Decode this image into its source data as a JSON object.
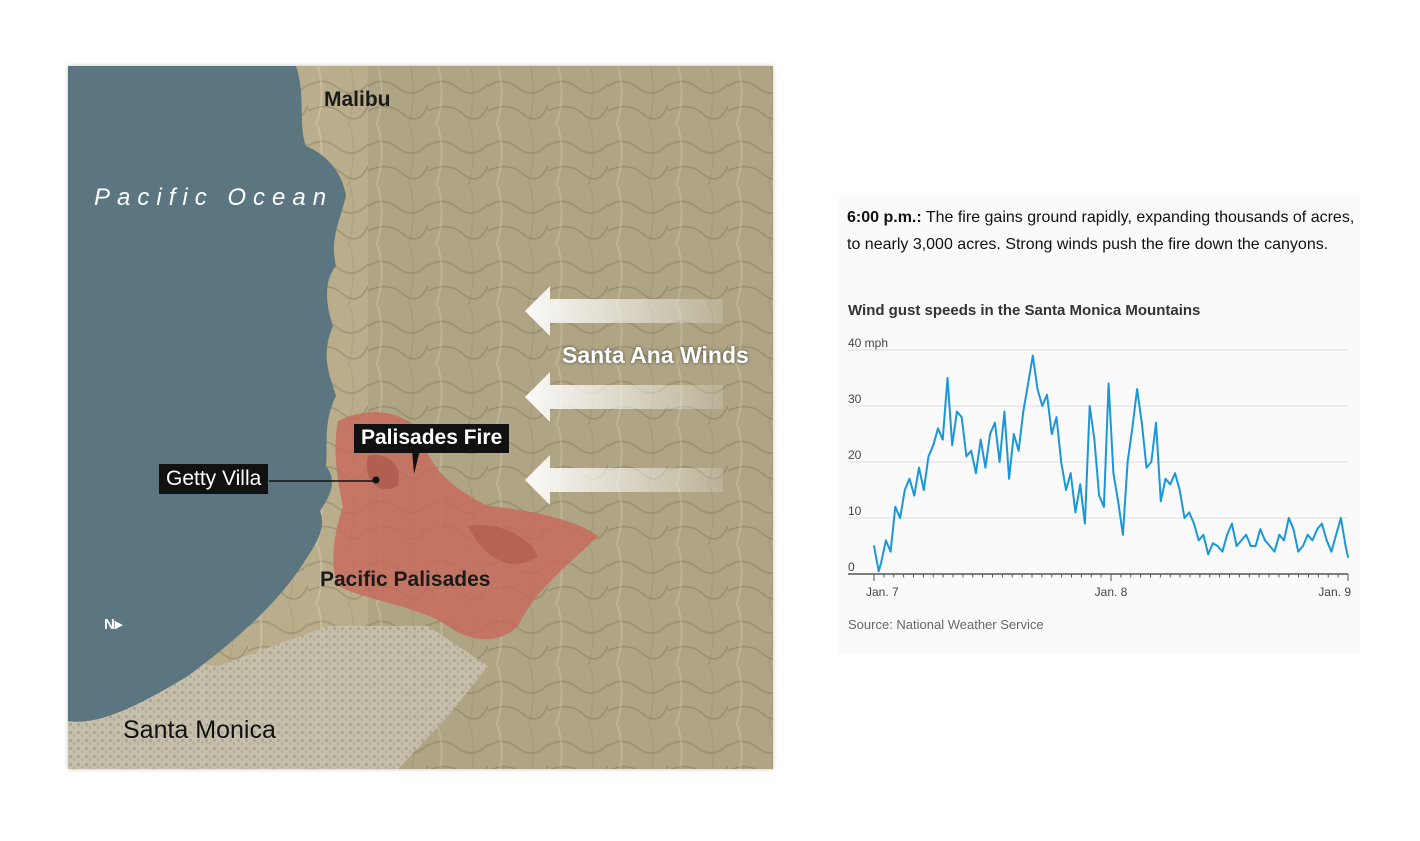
{
  "map": {
    "labels": {
      "malibu": "Malibu",
      "ocean": "Pacific Ocean",
      "winds": "Santa Ana Winds",
      "fire": "Palisades Fire",
      "getty": "Getty Villa",
      "palisades": "Pacific Palisades",
      "santa_monica": "Santa Monica"
    },
    "north_symbol": "N▸",
    "colors": {
      "ocean": "#5b7681",
      "land": "#b9ad8c",
      "fire": "#c8685a"
    }
  },
  "caption": {
    "time": "6:00 p.m.:",
    "text": " The fire gains ground rapidly, expanding thousands of acres, to nearly 3,000 acres. Strong winds push the fire down the canyons."
  },
  "chart_title": "Wind gust speeds in the Santa Monica Mountains",
  "source": "Source: National Weather Service",
  "chart_data": {
    "type": "line",
    "title": "Wind gust speeds in the Santa Monica Mountains",
    "xlabel": "",
    "ylabel": "",
    "ylim": [
      0,
      40
    ],
    "xlim": [
      0,
      2
    ],
    "yticks": [
      "0",
      "10",
      "20",
      "30",
      "40 mph"
    ],
    "xticks": [
      {
        "x": 0,
        "label": "Jan. 7"
      },
      {
        "x": 1,
        "label": "Jan. 8"
      },
      {
        "x": 2,
        "label": "Jan. 9"
      }
    ],
    "grid": true,
    "color": "#1a97d8",
    "series": [
      {
        "x": [
          0.0,
          0.02,
          0.03,
          0.05,
          0.07,
          0.09,
          0.11,
          0.13,
          0.15,
          0.17,
          0.19,
          0.21,
          0.23,
          0.25,
          0.27,
          0.29,
          0.31,
          0.33,
          0.35,
          0.37,
          0.39,
          0.41,
          0.43,
          0.45,
          0.47,
          0.49,
          0.51,
          0.53,
          0.55,
          0.57,
          0.59,
          0.61,
          0.63,
          0.65,
          0.67,
          0.69,
          0.71,
          0.73,
          0.75,
          0.77,
          0.79,
          0.81,
          0.83,
          0.85,
          0.87,
          0.89,
          0.91,
          0.93,
          0.95,
          0.97,
          0.99,
          1.01,
          1.03,
          1.05,
          1.07,
          1.09,
          1.11,
          1.13,
          1.15,
          1.17,
          1.19,
          1.21,
          1.23,
          1.25,
          1.27,
          1.29,
          1.31,
          1.33,
          1.35,
          1.37,
          1.39,
          1.41,
          1.43,
          1.45,
          1.47,
          1.49,
          1.51,
          1.53,
          1.55,
          1.57,
          1.59,
          1.61,
          1.63,
          1.65,
          1.67,
          1.69,
          1.71,
          1.73,
          1.75,
          1.77,
          1.79,
          1.81,
          1.83,
          1.85,
          1.87,
          1.89,
          1.91,
          1.93,
          1.95,
          1.97,
          1.99,
          2.0
        ],
        "values": [
          5,
          0.5,
          2,
          6,
          4,
          12,
          10,
          15,
          17,
          14,
          19,
          15,
          21,
          23,
          26,
          24,
          35,
          23,
          29,
          28,
          21,
          22,
          18,
          24,
          19,
          25,
          27,
          20,
          29,
          17,
          25,
          22,
          29,
          34,
          39,
          33,
          30,
          32,
          25,
          28,
          20,
          15,
          18,
          11,
          16,
          9,
          30,
          24,
          14,
          12,
          34,
          18,
          13,
          7,
          20,
          26,
          33,
          27,
          19,
          20,
          27,
          13,
          17,
          16,
          18,
          15,
          10,
          11,
          9,
          6,
          7,
          3.5,
          5.5,
          5,
          4,
          7,
          9,
          5,
          6,
          7,
          5,
          5,
          8,
          6,
          5,
          4,
          7,
          6,
          10,
          8,
          4,
          5,
          7,
          6,
          8,
          9,
          6,
          4,
          7,
          10,
          5,
          3
        ]
      }
    ]
  }
}
